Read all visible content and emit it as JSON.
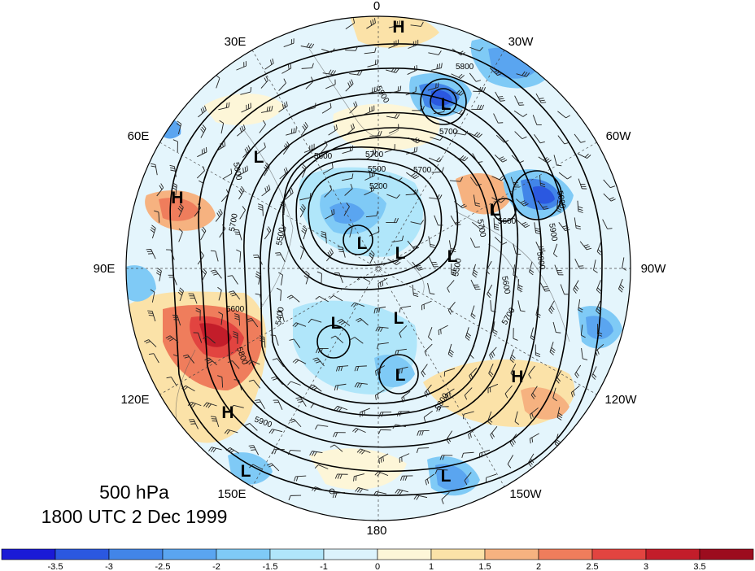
{
  "caption": {
    "level": "500 hPa",
    "time": "1800 UTC 2 Dec 1999"
  },
  "longitude_labels": [
    "0",
    "30W",
    "60W",
    "90W",
    "120W",
    "150W",
    "180",
    "150E",
    "120E",
    "90E",
    "60E",
    "30E"
  ],
  "pressure_systems": [
    "H",
    "L",
    "L",
    "H",
    "L",
    "L",
    "L",
    "L",
    "L",
    "L",
    "L",
    "H",
    "H",
    "L",
    "L"
  ],
  "contour_labels": [
    "5800",
    "5900",
    "5700",
    "5800",
    "5600",
    "5500",
    "5200",
    "5700",
    "5700",
    "5600",
    "5800",
    "5700",
    "5500",
    "5400",
    "5600",
    "5800",
    "5900",
    "5800",
    "5700",
    "5600",
    "5800",
    "5700",
    "5500",
    "5900"
  ],
  "colorbar": {
    "ticks": [
      "-3.5",
      "-3",
      "-2.5",
      "-2",
      "-1.5",
      "-1",
      "0",
      "1",
      "1.5",
      "2",
      "2.5",
      "3",
      "3.5"
    ],
    "colors": [
      "#1a1ad6",
      "#2b58e0",
      "#4285e8",
      "#5aa5f0",
      "#7fcaf6",
      "#b0e6fa",
      "#dcf3fc",
      "#fdf6d8",
      "#fbe2a8",
      "#f6b280",
      "#ef7d5c",
      "#e24440",
      "#c31d2a",
      "#9c0c1e"
    ]
  }
}
